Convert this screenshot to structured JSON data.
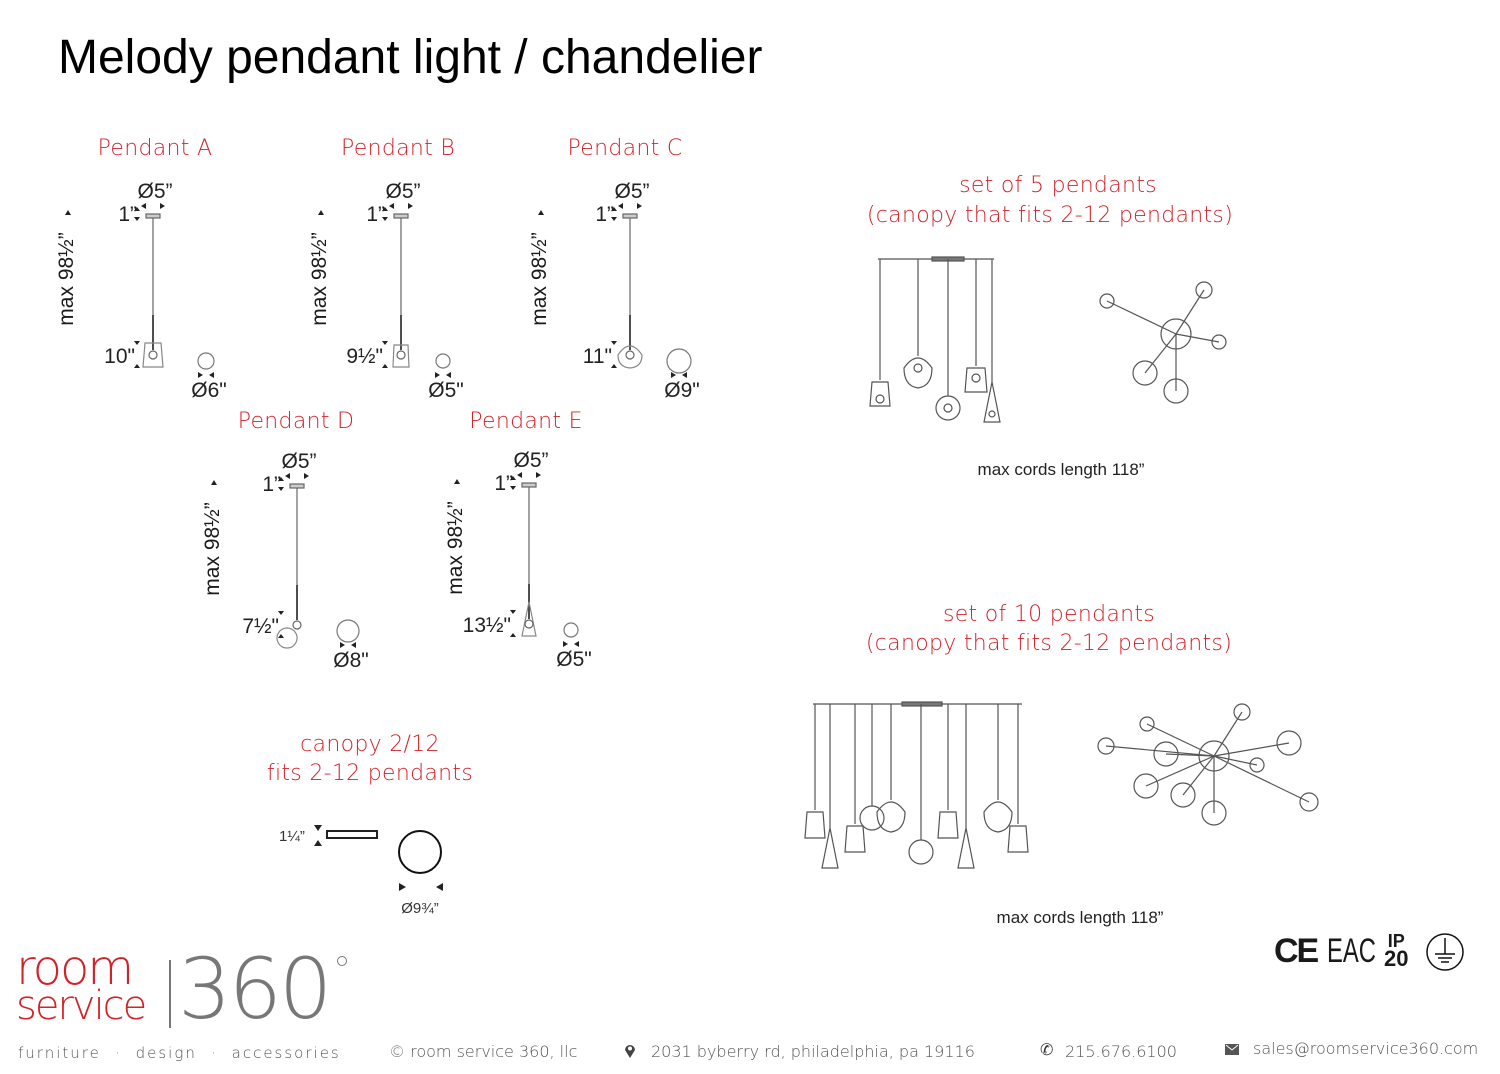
{
  "title": "Melody pendant light / chandelier",
  "pendants": [
    {
      "name": "Pendant A",
      "top_dia": "Ø5”",
      "canopy_h": "1”",
      "max_len": "max 98½”",
      "shade_h": "10\"",
      "shade_dia": "Ø6\""
    },
    {
      "name": "Pendant B",
      "top_dia": "Ø5”",
      "canopy_h": "1”",
      "max_len": "max 98½”",
      "shade_h": "9½\"",
      "shade_dia": "Ø5\""
    },
    {
      "name": "Pendant C",
      "top_dia": "Ø5”",
      "canopy_h": "1”",
      "max_len": "max 98½”",
      "shade_h": "11\"",
      "shade_dia": "Ø9\""
    },
    {
      "name": "Pendant D",
      "top_dia": "Ø5”",
      "canopy_h": "1”",
      "max_len": "max 98½”",
      "shade_h": "7½\"",
      "shade_dia": "Ø8\""
    },
    {
      "name": "Pendant E",
      "top_dia": "Ø5”",
      "canopy_h": "1”",
      "max_len": "max 98½”",
      "shade_h": "13½\"",
      "shade_dia": "Ø5\""
    }
  ],
  "canopy": {
    "title": "canopy 2/12",
    "subtitle": "fits 2-12 pendants",
    "height": "1¼”",
    "diameter": "Ø9¾”"
  },
  "set5": {
    "title": "set of 5 pendants",
    "subtitle": "(canopy that fits 2-12 pendants)",
    "caption": "max cords length 118”"
  },
  "set10": {
    "title": "set of 10 pendants",
    "subtitle": "(canopy that fits 2-12 pendants)",
    "caption": "max cords length 118”"
  },
  "certifications": {
    "ce": "CE",
    "eac": "EAC",
    "ip_top": "IP",
    "ip_bottom": "20",
    "ground": "ground-symbol"
  },
  "logo": {
    "line1": "room",
    "line2": "service",
    "number": "360",
    "tagline": [
      "furniture",
      "design",
      "accessories"
    ]
  },
  "footer": {
    "copyright": "© room service 360, llc",
    "address": "2031 byberry rd, philadelphia, pa 19116",
    "phone": "215.676.6100",
    "email": "sales@roomservice360.com"
  },
  "colors": {
    "accent": "#d2232a",
    "logo_gray": "#777777"
  }
}
